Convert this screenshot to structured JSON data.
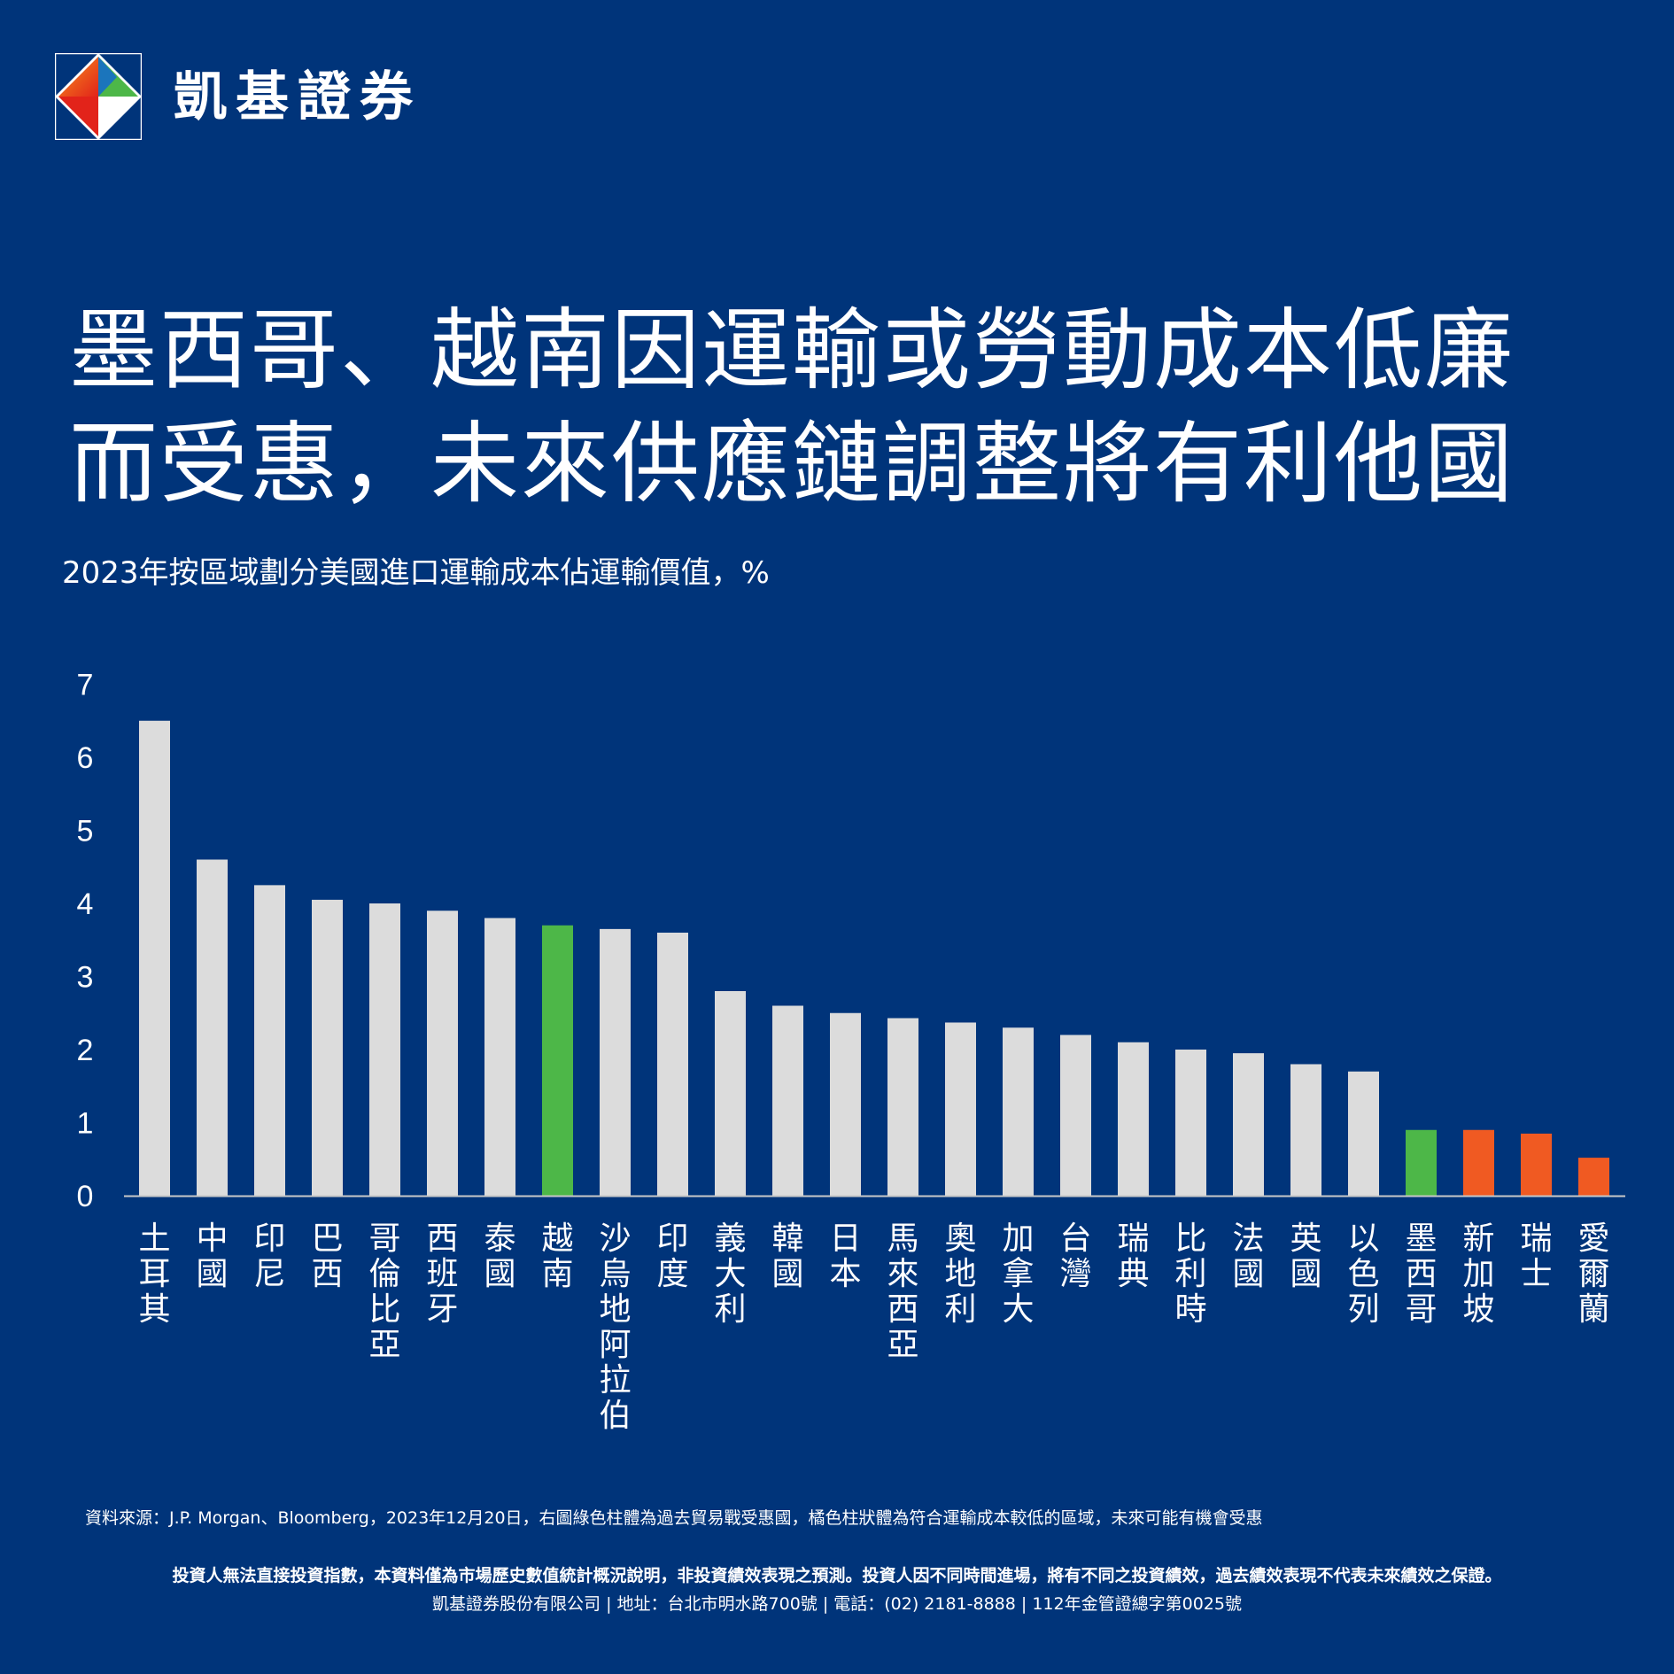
{
  "brand": {
    "name": "凱基證券"
  },
  "title": {
    "line1": "墨西哥、越南因運輸或勞動成本低廉",
    "line2": "而受惠，未來供應鏈調整將有利他國"
  },
  "subtitle": "2023年按區域劃分美國進口運輸成本佔運輸價值，%",
  "colors": {
    "background": "#00347a",
    "bar_default": "#dcdcdc",
    "bar_green": "#4db748",
    "bar_orange": "#f05a22"
  },
  "chart_data": {
    "type": "bar",
    "ylim": [
      0,
      7
    ],
    "yticks": [
      "0",
      "1",
      "2",
      "3",
      "4",
      "5",
      "6",
      "7"
    ],
    "categories": [
      "土耳其",
      "中國",
      "印尼",
      "巴西",
      "哥倫比亞",
      "西班牙",
      "泰國",
      "越南",
      "沙烏地阿拉伯",
      "印度",
      "義大利",
      "韓國",
      "日本",
      "馬來西亞",
      "奧地利",
      "加拿大",
      "台灣",
      "瑞典",
      "比利時",
      "法國",
      "英國",
      "以色列",
      "墨西哥",
      "新加坡",
      "瑞士",
      "愛爾蘭"
    ],
    "values": [
      6.5,
      4.6,
      4.25,
      4.05,
      4.0,
      3.9,
      3.8,
      3.7,
      3.65,
      3.6,
      2.8,
      2.6,
      2.5,
      2.43,
      2.37,
      2.3,
      2.2,
      2.1,
      2.0,
      1.95,
      1.8,
      1.7,
      0.9,
      0.9,
      0.85,
      0.52
    ],
    "highlight": [
      "default",
      "default",
      "default",
      "default",
      "default",
      "default",
      "default",
      "green",
      "default",
      "default",
      "default",
      "default",
      "default",
      "default",
      "default",
      "default",
      "default",
      "default",
      "default",
      "default",
      "default",
      "default",
      "green",
      "orange",
      "orange",
      "orange"
    ],
    "grid": false,
    "legend": "none"
  },
  "footer": {
    "source": "資料來源：J.P. Morgan、Bloomberg，2023年12月20日，右圖綠色柱體為過去貿易戰受惠國，橘色柱狀體為符合運輸成本較低的區域，未來可能有機會受惠",
    "disclaimer": "投資人無法直接投資指數，本資料僅為市場歷史數值統計概況說明，非投資績效表現之預測。投資人因不同時間進場，將有不同之投資績效，過去績效表現不代表未來績效之保證。",
    "company": "凱基證券股份有限公司 | 地址：台北市明水路700號 | 電話：(02) 2181-8888 | 112年金管證總字第0025號"
  }
}
